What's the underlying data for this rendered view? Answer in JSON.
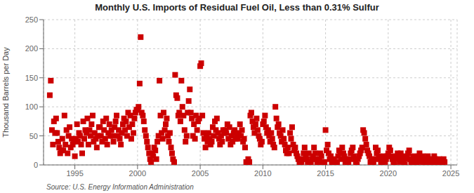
{
  "chart_data": {
    "type": "scatter",
    "title": "Monthly U.S. Imports of Residual Fuel Oil, Less than 0.31% Sulfur",
    "ylabel": "Thousand Barrels per Day",
    "annotation": "Source: U.S. Energy Information Administration",
    "color": "#cc0000",
    "marker": "square",
    "grid": true,
    "xlim": [
      1992.5,
      2025.5
    ],
    "ylim": [
      0,
      250
    ],
    "xticks": [
      1995,
      2000,
      2005,
      2010,
      2015,
      2020,
      2025
    ],
    "yticks": [
      0,
      50,
      100,
      150,
      200,
      250
    ],
    "x": [
      1993.0,
      1993.08,
      1993.17,
      1993.25,
      1993.33,
      1993.42,
      1993.5,
      1993.58,
      1993.67,
      1993.75,
      1993.83,
      1993.92,
      1994.0,
      1994.08,
      1994.17,
      1994.25,
      1994.33,
      1994.42,
      1994.5,
      1994.58,
      1994.67,
      1994.75,
      1994.83,
      1994.92,
      1995.0,
      1995.08,
      1995.17,
      1995.25,
      1995.33,
      1995.42,
      1995.5,
      1995.58,
      1995.67,
      1995.75,
      1995.83,
      1995.92,
      1996.0,
      1996.08,
      1996.17,
      1996.25,
      1996.33,
      1996.42,
      1996.5,
      1996.58,
      1996.67,
      1996.75,
      1996.83,
      1996.92,
      1997.0,
      1997.08,
      1997.17,
      1997.25,
      1997.33,
      1997.42,
      1997.5,
      1997.58,
      1997.67,
      1997.75,
      1997.83,
      1997.92,
      1998.0,
      1998.08,
      1998.17,
      1998.25,
      1998.33,
      1998.42,
      1998.5,
      1998.58,
      1998.67,
      1998.75,
      1998.83,
      1998.92,
      1999.0,
      1999.08,
      1999.17,
      1999.25,
      1999.33,
      1999.42,
      1999.5,
      1999.58,
      1999.67,
      1999.75,
      1999.83,
      1999.92,
      2000.0,
      2000.08,
      2000.17,
      2000.25,
      2000.33,
      2000.42,
      2000.5,
      2000.58,
      2000.67,
      2000.75,
      2000.83,
      2000.92,
      2001.0,
      2001.08,
      2001.17,
      2001.25,
      2001.33,
      2001.42,
      2001.5,
      2001.58,
      2001.67,
      2001.75,
      2001.83,
      2001.92,
      2002.0,
      2002.08,
      2002.17,
      2002.25,
      2002.33,
      2002.42,
      2002.5,
      2002.58,
      2002.67,
      2002.75,
      2002.83,
      2002.92,
      2003.0,
      2003.08,
      2003.17,
      2003.25,
      2003.33,
      2003.42,
      2003.5,
      2003.58,
      2003.67,
      2003.75,
      2003.83,
      2003.92,
      2004.0,
      2004.08,
      2004.17,
      2004.25,
      2004.33,
      2004.42,
      2004.5,
      2004.58,
      2004.67,
      2004.75,
      2004.83,
      2004.92,
      2005.0,
      2005.08,
      2005.17,
      2005.25,
      2005.33,
      2005.42,
      2005.5,
      2005.58,
      2005.67,
      2005.75,
      2005.83,
      2005.92,
      2006.0,
      2006.08,
      2006.17,
      2006.25,
      2006.33,
      2006.42,
      2006.5,
      2006.58,
      2006.67,
      2006.75,
      2006.83,
      2006.92,
      2007.0,
      2007.08,
      2007.17,
      2007.25,
      2007.33,
      2007.42,
      2007.5,
      2007.58,
      2007.67,
      2007.75,
      2007.83,
      2007.92,
      2008.0,
      2008.08,
      2008.17,
      2008.25,
      2008.33,
      2008.42,
      2008.5,
      2008.58,
      2008.67,
      2008.75,
      2008.83,
      2008.92,
      2009.0,
      2009.08,
      2009.17,
      2009.25,
      2009.33,
      2009.42,
      2009.5,
      2009.58,
      2009.67,
      2009.75,
      2009.83,
      2009.92,
      2010.0,
      2010.08,
      2010.17,
      2010.25,
      2010.33,
      2010.42,
      2010.5,
      2010.58,
      2010.67,
      2010.75,
      2010.83,
      2010.92,
      2011.0,
      2011.08,
      2011.17,
      2011.25,
      2011.33,
      2011.42,
      2011.5,
      2011.58,
      2011.67,
      2011.75,
      2011.83,
      2011.92,
      2012.0,
      2012.08,
      2012.17,
      2012.25,
      2012.33,
      2012.42,
      2012.5,
      2012.58,
      2012.67,
      2012.75,
      2012.83,
      2012.92,
      2013.0,
      2013.08,
      2013.17,
      2013.25,
      2013.33,
      2013.42,
      2013.5,
      2013.58,
      2013.67,
      2013.75,
      2013.83,
      2013.92,
      2014.0,
      2014.08,
      2014.17,
      2014.25,
      2014.33,
      2014.42,
      2014.5,
      2014.58,
      2014.67,
      2014.75,
      2014.83,
      2014.92,
      2015.0,
      2015.08,
      2015.17,
      2015.25,
      2015.33,
      2015.42,
      2015.5,
      2015.58,
      2015.67,
      2015.75,
      2015.83,
      2015.92,
      2016.0,
      2016.08,
      2016.17,
      2016.25,
      2016.33,
      2016.42,
      2016.5,
      2016.58,
      2016.67,
      2016.75,
      2016.83,
      2016.92,
      2017.0,
      2017.08,
      2017.17,
      2017.25,
      2017.33,
      2017.42,
      2017.5,
      2017.58,
      2017.67,
      2017.75,
      2017.83,
      2017.92,
      2018.0,
      2018.08,
      2018.17,
      2018.25,
      2018.33,
      2018.42,
      2018.5,
      2018.58,
      2018.67,
      2018.75,
      2018.83,
      2018.92,
      2019.0,
      2019.08,
      2019.17,
      2019.25,
      2019.33,
      2019.42,
      2019.5,
      2019.58,
      2019.67,
      2019.75,
      2019.83,
      2019.92,
      2020.0,
      2020.08,
      2020.17,
      2020.25,
      2020.33,
      2020.42,
      2020.5,
      2020.58,
      2020.67,
      2020.75,
      2020.83,
      2020.92,
      2021.0,
      2021.08,
      2021.17,
      2021.25,
      2021.33,
      2021.42,
      2021.5,
      2021.58,
      2021.67,
      2021.75,
      2021.83,
      2021.92,
      2022.0,
      2022.08,
      2022.17,
      2022.25,
      2022.33,
      2022.42,
      2022.5,
      2022.58,
      2022.67,
      2022.75,
      2022.83,
      2022.92,
      2023.0,
      2023.08,
      2023.17,
      2023.25,
      2023.33,
      2023.42,
      2023.5,
      2023.58,
      2023.67,
      2023.75,
      2023.83,
      2023.92,
      2024.0,
      2024.08,
      2024.17,
      2024.25,
      2024.33,
      2024.42,
      2024.5
    ],
    "values": [
      120,
      145,
      60,
      35,
      75,
      55,
      80,
      55,
      40,
      30,
      20,
      25,
      45,
      25,
      85,
      35,
      60,
      20,
      50,
      65,
      30,
      45,
      35,
      40,
      15,
      45,
      70,
      40,
      55,
      50,
      35,
      20,
      75,
      45,
      60,
      55,
      80,
      35,
      60,
      50,
      70,
      85,
      40,
      55,
      45,
      30,
      50,
      65,
      65,
      50,
      40,
      75,
      60,
      45,
      80,
      35,
      55,
      70,
      50,
      60,
      50,
      40,
      65,
      75,
      85,
      50,
      60,
      45,
      35,
      55,
      70,
      80,
      60,
      75,
      50,
      90,
      65,
      85,
      45,
      70,
      55,
      80,
      90,
      95,
      95,
      100,
      140,
      220,
      90,
      85,
      75,
      60,
      50,
      40,
      30,
      20,
      10,
      5,
      20,
      15,
      30,
      25,
      10,
      40,
      50,
      145,
      85,
      55,
      45,
      90,
      60,
      70,
      80,
      50,
      40,
      55,
      30,
      20,
      10,
      5,
      155,
      120,
      115,
      85,
      90,
      75,
      145,
      100,
      85,
      60,
      40,
      50,
      90,
      110,
      130,
      90,
      80,
      50,
      70,
      45,
      85,
      60,
      75,
      80,
      170,
      175,
      85,
      55,
      45,
      30,
      50,
      40,
      55,
      45,
      35,
      40,
      65,
      50,
      75,
      60,
      80,
      55,
      45,
      35,
      50,
      40,
      60,
      55,
      60,
      55,
      70,
      45,
      65,
      35,
      50,
      40,
      55,
      60,
      45,
      50,
      45,
      55,
      70,
      50,
      60,
      40,
      45,
      30,
      5,
      0,
      10,
      5,
      85,
      90,
      75,
      65,
      55,
      70,
      80,
      60,
      50,
      45,
      35,
      40,
      70,
      75,
      85,
      65,
      55,
      60,
      50,
      40,
      55,
      45,
      35,
      30,
      100,
      80,
      65,
      70,
      55,
      50,
      40,
      60,
      45,
      35,
      25,
      20,
      30,
      20,
      55,
      45,
      65,
      35,
      25,
      30,
      20,
      15,
      10,
      5,
      0,
      5,
      10,
      20,
      30,
      15,
      10,
      5,
      20,
      0,
      5,
      10,
      15,
      30,
      20,
      10,
      5,
      0,
      10,
      20,
      15,
      5,
      0,
      5,
      60,
      25,
      35,
      20,
      10,
      15,
      5,
      0,
      10,
      5,
      0,
      5,
      15,
      25,
      20,
      10,
      30,
      20,
      15,
      5,
      10,
      0,
      5,
      10,
      20,
      25,
      30,
      15,
      10,
      5,
      0,
      10,
      15,
      20,
      25,
      30,
      60,
      55,
      45,
      35,
      25,
      20,
      15,
      5,
      10,
      0,
      5,
      10,
      30,
      20,
      25,
      15,
      10,
      5,
      0,
      10,
      15,
      5,
      10,
      15,
      20,
      30,
      25,
      15,
      10,
      5,
      0,
      10,
      15,
      20,
      10,
      5,
      20,
      15,
      10,
      5,
      0,
      10,
      15,
      20,
      25,
      10,
      5,
      0,
      15,
      10,
      5,
      0,
      10,
      15,
      20,
      5,
      10,
      15,
      5,
      0,
      10,
      5,
      15,
      10,
      5,
      0,
      10,
      5,
      15,
      10,
      5,
      0,
      5,
      10,
      5,
      0,
      5,
      10,
      5
    ]
  }
}
